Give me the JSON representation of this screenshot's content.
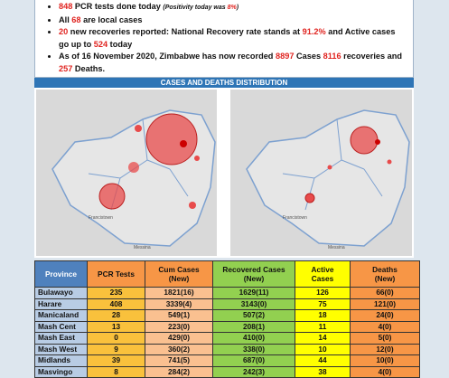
{
  "bullets": [
    [
      {
        "text": "848",
        "style": "red"
      },
      {
        "text": " PCR tests done today "
      },
      {
        "text": "(Positivity today was ",
        "style": "italic"
      },
      {
        "text": "8%",
        "style": "italic-red"
      },
      {
        "text": ")",
        "style": "italic"
      }
    ],
    [
      {
        "text": "All "
      },
      {
        "text": "68",
        "style": "red"
      },
      {
        "text": " are local cases"
      }
    ],
    [
      {
        "text": "20",
        "style": "red"
      },
      {
        "text": " new recoveries reported: National Recovery rate stands at "
      },
      {
        "text": "91.2%",
        "style": "red"
      },
      {
        "text": " and Active cases go up to "
      },
      {
        "text": "524",
        "style": "red"
      },
      {
        "text": " today"
      }
    ],
    [
      {
        "text": "As of 16 November 2020, Zimbabwe has now recorded "
      },
      {
        "text": "8897",
        "style": "red"
      },
      {
        "text": " Cases "
      },
      {
        "text": "8116",
        "style": "red"
      },
      {
        "text": " recoveries and "
      },
      {
        "text": "257",
        "style": "red"
      },
      {
        "text": " Deaths."
      }
    ]
  ],
  "banner": "CASES AND DEATHS DISTRIBUTION",
  "maps": {
    "labels": [
      "Francistown",
      "Messina"
    ]
  },
  "table": {
    "header": [
      "Province",
      "PCR Tests",
      "Cum Cases\n(New)",
      "Recovered Cases\n(New)",
      "Active\nCases",
      "Deaths\n(New)"
    ],
    "header_colors": [
      "#4f81bd",
      "#f79646",
      "#f79646",
      "#92d050",
      "#ffff00",
      "#f79646"
    ],
    "column_colors": [
      "#b8cce4",
      "#f9c13c",
      "#fac090",
      "#92d050",
      "#ffff00",
      "#f79646"
    ],
    "rows": [
      [
        "Bulawayo",
        "235",
        "1821(16)",
        "1629(11)",
        "126",
        "66(0)"
      ],
      [
        "Harare",
        "408",
        "3339(4)",
        "3143(0)",
        "75",
        "121(0)"
      ],
      [
        "Manicaland",
        "28",
        "549(1)",
        "507(2)",
        "18",
        "24(0)"
      ],
      [
        "Mash Cent",
        "13",
        "223(0)",
        "208(1)",
        "11",
        "4(0)"
      ],
      [
        "Mash East",
        "0",
        "429(0)",
        "410(0)",
        "14",
        "5(0)"
      ],
      [
        "Mash West",
        "9",
        "360(2)",
        "338(0)",
        "10",
        "12(0)"
      ],
      [
        "Midlands",
        "39",
        "741(5)",
        "687(0)",
        "44",
        "10(0)"
      ],
      [
        "Masvingo",
        "8",
        "284(2)",
        "242(3)",
        "38",
        "4(0)"
      ]
    ]
  }
}
